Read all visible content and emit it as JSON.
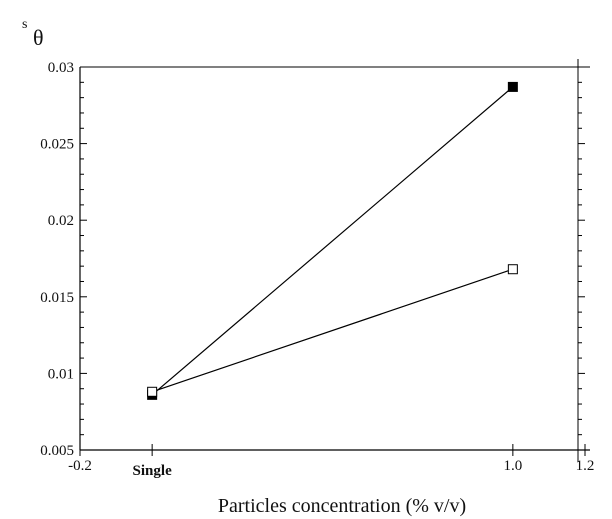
{
  "chart_data": {
    "type": "line",
    "title": "",
    "ylabel": {
      "superscript": "s",
      "symbol": "θ"
    },
    "xlabel": "Particles concentration (% v/v)",
    "x_ticks": [
      {
        "value": -0.2,
        "label": "-0.2",
        "bold": false
      },
      {
        "value": 0,
        "label": "Single",
        "bold": true
      },
      {
        "value": 1.0,
        "label": "1.0",
        "bold": false
      },
      {
        "value": 1.2,
        "label": "1.2",
        "bold": false
      }
    ],
    "y_ticks": [
      {
        "value": 0.005,
        "label": "0.005"
      },
      {
        "value": 0.01,
        "label": "0.01"
      },
      {
        "value": 0.015,
        "label": "0.015"
      },
      {
        "value": 0.02,
        "label": "0.02"
      },
      {
        "value": 0.025,
        "label": "0.025"
      },
      {
        "value": 0.03,
        "label": "0.03"
      }
    ],
    "xlim": [
      -0.2,
      1.2
    ],
    "ylim": [
      0.005,
      0.03
    ],
    "grid": false,
    "series": [
      {
        "marker": "filled-square",
        "color": "#000000",
        "x": [
          0,
          1.0
        ],
        "y": [
          0.0086,
          0.0287
        ]
      },
      {
        "marker": "open-square",
        "color": "#000000",
        "x": [
          0,
          1.0
        ],
        "y": [
          0.0088,
          0.0168
        ]
      }
    ]
  }
}
